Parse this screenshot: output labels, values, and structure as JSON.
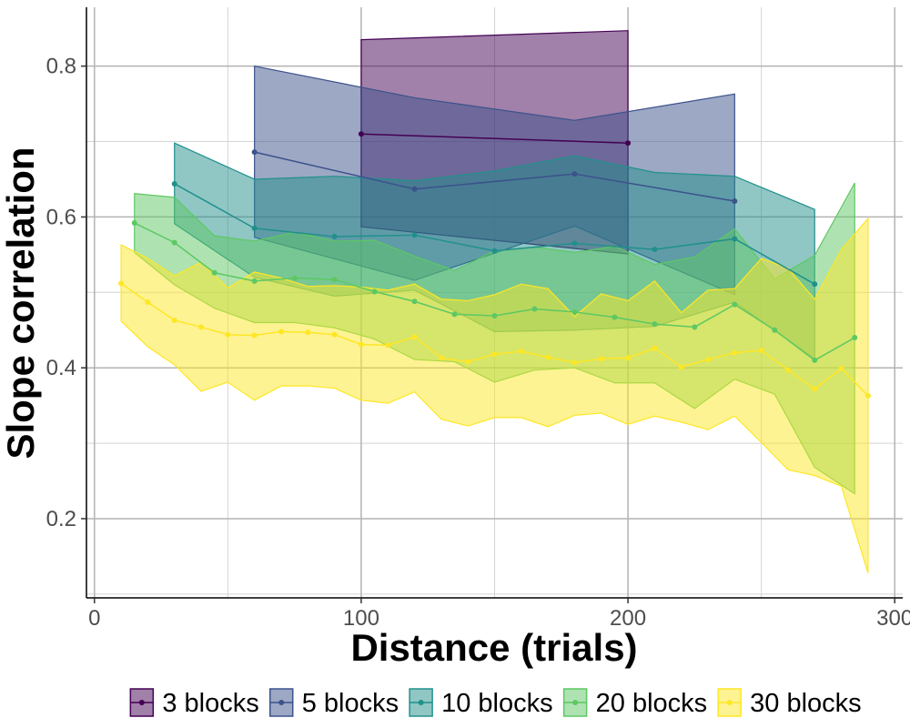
{
  "chart_data": {
    "type": "line",
    "xlabel": "Distance (trials)",
    "ylabel": "Slope correlation",
    "xlim": [
      -3,
      303
    ],
    "ylim": [
      0.095,
      0.878
    ],
    "xticks": [
      0,
      100,
      200,
      300
    ],
    "yticks": [
      0.2,
      0.4,
      0.6,
      0.8
    ],
    "ytick_labels": [
      "0.2",
      "0.4",
      "0.6",
      "0.8"
    ],
    "grid": true,
    "legend_position": "bottom",
    "series": [
      {
        "name": "3 blocks",
        "color": "#440154",
        "x": [
          100,
          200
        ],
        "y": [
          0.71,
          0.698
        ],
        "upper": [
          0.835,
          0.847
        ],
        "lower": [
          0.587,
          0.551
        ]
      },
      {
        "name": "5 blocks",
        "color": "#3B528B",
        "x": [
          60,
          120,
          180,
          240
        ],
        "y": [
          0.686,
          0.637,
          0.657,
          0.621
        ],
        "upper": [
          0.8,
          0.758,
          0.728,
          0.763
        ],
        "lower": [
          0.573,
          0.516,
          0.588,
          0.497
        ]
      },
      {
        "name": "10 blocks",
        "color": "#21908C",
        "x": [
          30,
          60,
          90,
          120,
          150,
          180,
          210,
          240,
          270
        ],
        "y": [
          0.644,
          0.585,
          0.574,
          0.576,
          0.555,
          0.565,
          0.557,
          0.571,
          0.511
        ],
        "upper": [
          0.698,
          0.65,
          0.654,
          0.648,
          0.661,
          0.681,
          0.659,
          0.654,
          0.61
        ],
        "lower": [
          0.591,
          0.52,
          0.495,
          0.503,
          0.448,
          0.45,
          0.455,
          0.487,
          0.412
        ]
      },
      {
        "name": "20 blocks",
        "color": "#5DC863",
        "x": [
          15,
          30,
          45,
          60,
          75,
          90,
          105,
          120,
          135,
          150,
          165,
          180,
          195,
          210,
          225,
          240,
          255,
          270,
          285
        ],
        "y": [
          0.592,
          0.566,
          0.526,
          0.515,
          0.519,
          0.517,
          0.501,
          0.488,
          0.471,
          0.469,
          0.478,
          0.474,
          0.467,
          0.458,
          0.454,
          0.484,
          0.45,
          0.41,
          0.44
        ],
        "upper": [
          0.631,
          0.626,
          0.575,
          0.568,
          0.58,
          0.568,
          0.569,
          0.548,
          0.529,
          0.555,
          0.56,
          0.553,
          0.561,
          0.537,
          0.547,
          0.584,
          0.518,
          0.549,
          0.645
        ],
        "lower": [
          0.553,
          0.51,
          0.479,
          0.46,
          0.46,
          0.453,
          0.438,
          0.411,
          0.408,
          0.381,
          0.397,
          0.4,
          0.38,
          0.38,
          0.346,
          0.385,
          0.365,
          0.268,
          0.233
        ]
      },
      {
        "name": "30 blocks",
        "color": "#FDE725",
        "x": [
          10,
          20,
          30,
          40,
          50,
          60,
          70,
          80,
          90,
          100,
          110,
          120,
          130,
          140,
          150,
          160,
          170,
          180,
          190,
          200,
          210,
          220,
          230,
          240,
          250,
          260,
          270,
          280,
          290
        ],
        "y": [
          0.512,
          0.487,
          0.463,
          0.454,
          0.444,
          0.443,
          0.448,
          0.447,
          0.444,
          0.431,
          0.43,
          0.441,
          0.413,
          0.408,
          0.418,
          0.422,
          0.414,
          0.407,
          0.412,
          0.413,
          0.426,
          0.401,
          0.411,
          0.42,
          0.423,
          0.397,
          0.372,
          0.399,
          0.363
        ],
        "upper": [
          0.563,
          0.545,
          0.522,
          0.54,
          0.506,
          0.527,
          0.519,
          0.508,
          0.509,
          0.507,
          0.503,
          0.511,
          0.491,
          0.489,
          0.497,
          0.511,
          0.505,
          0.468,
          0.498,
          0.489,
          0.515,
          0.473,
          0.503,
          0.505,
          0.545,
          0.532,
          0.491,
          0.557,
          0.598
        ],
        "lower": [
          0.462,
          0.428,
          0.404,
          0.369,
          0.381,
          0.357,
          0.376,
          0.376,
          0.373,
          0.357,
          0.353,
          0.368,
          0.332,
          0.323,
          0.334,
          0.334,
          0.322,
          0.337,
          0.34,
          0.325,
          0.336,
          0.328,
          0.318,
          0.336,
          0.301,
          0.265,
          0.257,
          0.243,
          0.128
        ]
      }
    ]
  }
}
